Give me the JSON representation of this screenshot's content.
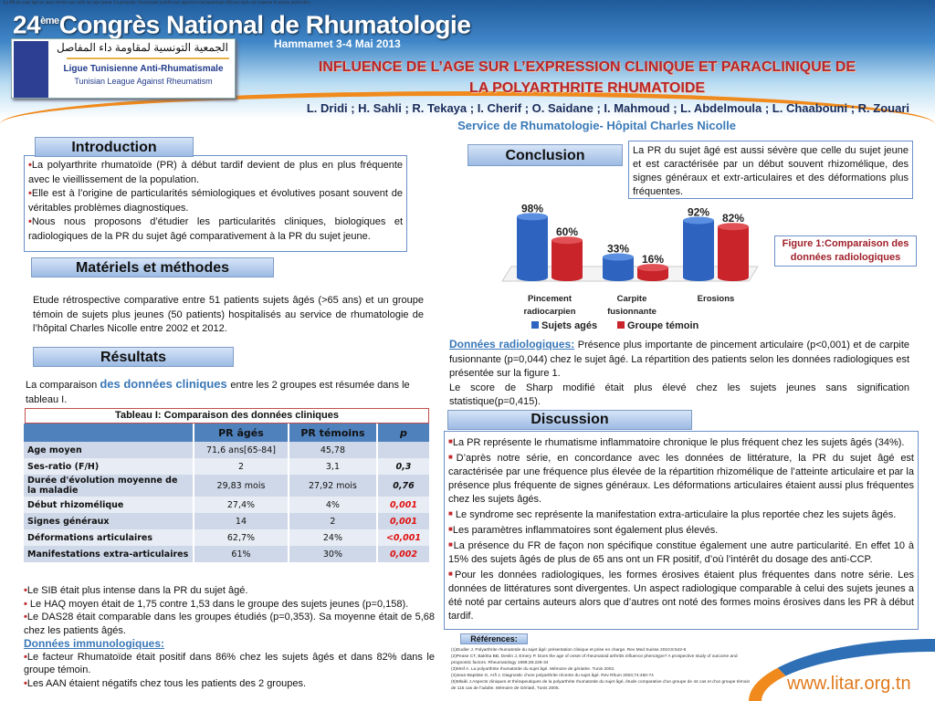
{
  "header": {
    "tiny_text": "La PR du sujet âgé est aussi sévère que celle du sujet jeune. Le pronostic fonctionnel justifie une approche thérapeutique efficace mais qui respecte le terrain particulier.",
    "congress_number": "24",
    "congress_suffix": "ème",
    "congress_name": "Congrès National de Rhumatologie",
    "city_date": "Hammamet  3-4 Mai 2013",
    "logo_arabic": "الجمعية التونسية لمقاومة داء المفاصل",
    "logo_fr": "Ligue Tunisienne Anti-Rhumatismale",
    "logo_en": "Tunisian League Against Rheumatism",
    "title_line1": "INFLUENCE DE L’AGE SUR L’EXPRESSION CLINIQUE ET PARACLINIQUE DE",
    "title_line2": "LA POLYARTHRITE RHUMATOIDE",
    "authors": "L. Dridi ; H. Sahli ; R. Tekaya ; I. Cherif ; O. Saidane ; I. Mahmoud ; L. Abdelmoula ; L. Chaabouni ; R. Zouari",
    "service": "Service de Rhumatologie- Hôpital Charles Nicolle"
  },
  "introduction": {
    "heading": "Introduction",
    "bullets": [
      "La polyarthrite rhumatoïde (PR) à début tardif devient de plus en plus fréquente avec le vieillissement de la population.",
      "Elle est à l’origine de particularités sémiologiques et évolutives posant souvent de véritables problèmes diagnostiques.",
      "Nous nous proposons d’étudier les particularités cliniques, biologiques et radiologiques de la PR du sujet âgé comparativement à la PR du sujet jeune."
    ]
  },
  "methods": {
    "heading": "Matériels et méthodes",
    "text": "Etude rétrospective comparative entre 51 patients sujets âgés (>65 ans) et un groupe témoin de sujets plus jeunes (50 patients) hospitalisés au service de rhumatologie de l’hôpital Charles Nicolle entre 2002 et 2012."
  },
  "results": {
    "heading": "Résultats",
    "intro_before": "La comparaison ",
    "intro_link": "des données cliniques ",
    "intro_after": "entre les 2 groupes est résumée dans le tableau I.",
    "table": {
      "caption": "Tableau I: Comparaison des données cliniques",
      "columns": [
        "",
        "PR âgés",
        "PR témoins",
        "p"
      ],
      "rows": [
        [
          "Age moyen",
          "71,6  ans[65-84]",
          "45,78",
          ""
        ],
        [
          "Ses-ratio (F/H)",
          "2",
          "3,1",
          "0,3"
        ],
        [
          "Durée d'évolution moyenne de la maladie",
          "29,83 mois",
          "27,92 mois",
          "0,76"
        ],
        [
          "Début rhizomélique",
          "27,4%",
          "4%",
          "0,001"
        ],
        [
          "Signes généraux",
          "14",
          "2",
          "0,001"
        ],
        [
          "Déformations articulaires",
          "62,7%",
          "24%",
          "<0,001"
        ],
        [
          "Manifestations extra-articulaires",
          "61%",
          "30%",
          "0,002"
        ]
      ],
      "significant_color": "#e01010"
    },
    "bullets": [
      "Le SIB était plus intense dans la PR du sujet âgé.",
      " Le HAQ moyen était de 1,75 contre 1,53 dans le groupe des sujets jeunes (p=0,158).",
      "Le DAS28 était comparable dans les groupes étudiés (p=0,353). Sa moyenne était de 5,68 chez les patients âgés."
    ],
    "immuno_heading": "Données immunologiques:",
    "immuno_bullets": [
      "Le facteur Rhumatoïde était positif dans 86% chez les sujets âgés et dans 82% dans le groupe témoin.",
      "Les AAN étaient négatifs chez tous les patients des 2 groupes."
    ]
  },
  "conclusion": {
    "heading": "Conclusion",
    "text": "La PR du sujet âgé est aussi sévère que celle du sujet jeune et est caractérisée par un début souvent rhizomélique, des signes généraux et extr-articulaires et des déformations plus fréquentes."
  },
  "chart_data": {
    "type": "bar",
    "categories": [
      "Pincement radiocarpien",
      "Carpite fusionnante",
      "Erosions"
    ],
    "series": [
      {
        "name": "Sujets agés",
        "values": [
          98,
          33,
          92
        ],
        "color": "#2e64c0"
      },
      {
        "name": "Groupe témoin",
        "values": [
          60,
          16,
          82
        ],
        "color": "#c8242a"
      }
    ],
    "value_labels": [
      [
        "98%",
        "33%",
        "92%"
      ],
      [
        "60%",
        "16%",
        "82%"
      ]
    ],
    "unit": "%",
    "legend": "bottom",
    "grid": false,
    "ylim": [
      0,
      100
    ],
    "caption": "Figure 1:Comparaison des données radiologiques"
  },
  "radiology": {
    "heading": "Données radiologiques:",
    "text1": " Présence plus importante de pincement articulaire (p<0,001) et de carpite fusionnante (p=0,044) chez le sujet âgé. La répartition des patients selon les données radiologiques est  présentée sur la figure 1.",
    "text2": "Le score de Sharp modifié était plus élevé chez les sujets jeunes    sans signification statistique(p=0,415)."
  },
  "discussion": {
    "heading": "Discussion",
    "items": [
      "La PR représente le rhumatisme inflammatoire chronique le plus fréquent chez les sujets âgés (34%).",
      "D’après notre série, en concordance avec les données de littérature, la PR du sujet âgé est caractérisée par une fréquence plus élevée de la répartition rhizomélique de l’atteinte articulaire et par la présence plus fréquente de signes généraux. Les déformations articulaires étaient aussi plus fréquentes chez les sujets âgés.",
      " Le syndrome sec représente la manifestation extra-articulaire la plus reportée chez les sujets âgés.",
      "Les paramètres inflammatoires sont également plus élevés.",
      "La présence du FR de façon non spécifique constitue également une autre particularité. En effet 10 à 15% des sujets âgés de plus de 65 ans ont un FR positif, d’où l’intérêt du dosage des anti-CCP.",
      "Pour les données radiologiques, les formes érosives étaient plus fréquentes dans notre série. Les données de littératures sont divergentes. Un aspect radiologique comparable à celui des sujets jeunes a été noté par certains auteurs alors que d’autres ont noté des formes  moins érosives dans les PR à début tardif."
    ]
  },
  "references": {
    "heading": "Références:",
    "items": [
      "(1)Dudler J. Polyarthrite rhumatoïde du sujet âgé: présentation clinique et prise en charge. Rev Med Suisse 2010;6:542-6",
      "(2)Pease CT, Bakhta BB, Devlin J, Emery P. Does the age of onset of rheumatoid arthritis influence phenotype? A prospective study of outcome and prognostic factors. Rheumatology 1999;38:228-34",
      "(3)Mnif A. La polyarthrite rhumatoïde du sujet âgé. Mémoire de gériatrie. Tunis 2002.",
      "(4)Jean-Baptiste G, Arfi J. Diagnostic d’une polyarthrite récente du sujet âgé. Rev Rhum 2004;74:460-74",
      "(5)Mlaiki J.Aspects cliniques et thérapeutiques de la polyarthrite rhumatoïde du sujet âgé, étude comparative d’un groupe de 44 cas et d’un groupe témoin de 115 cas de l’adulte. Mémoire de Gériatri, Tunis 2005."
    ]
  },
  "footer": {
    "website": "www.litar.org.tn"
  }
}
